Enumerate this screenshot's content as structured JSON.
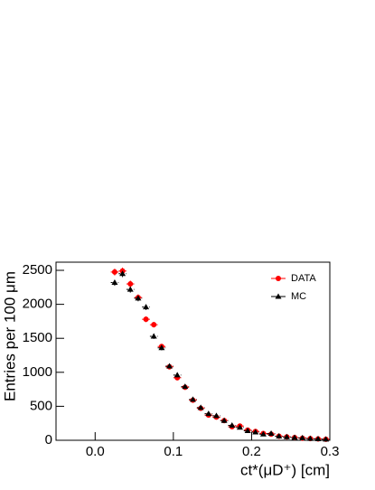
{
  "chart_data": {
    "type": "scatter",
    "x_label": "ct*(μD⁺) [cm]",
    "y_label": "Entries per 100 μm",
    "x": [
      0.025,
      0.035,
      0.045,
      0.055,
      0.065,
      0.075,
      0.085,
      0.095,
      0.105,
      0.115,
      0.125,
      0.135,
      0.145,
      0.155,
      0.165,
      0.175,
      0.185,
      0.195,
      0.205,
      0.215,
      0.225,
      0.235,
      0.245,
      0.255,
      0.265,
      0.275,
      0.285,
      0.295
    ],
    "xerr": 0.005,
    "series": [
      {
        "name": "DATA",
        "color": "#ff0000",
        "marker": "circle",
        "values": [
          2475,
          2490,
          2300,
          2100,
          1780,
          1700,
          1380,
          1080,
          920,
          780,
          590,
          470,
          370,
          340,
          290,
          200,
          210,
          150,
          130,
          100,
          90,
          60,
          50,
          40,
          30,
          25,
          20,
          15
        ],
        "yerr": [
          50,
          50,
          48,
          46,
          42,
          41,
          37,
          33,
          30,
          28,
          24,
          22,
          19,
          18,
          17,
          14,
          14,
          12,
          11,
          10,
          9,
          8,
          7,
          6,
          5,
          5,
          4,
          4
        ]
      },
      {
        "name": "MC",
        "color": "#000000",
        "marker": "triangle",
        "values": [
          2320,
          2450,
          2220,
          2090,
          1960,
          1530,
          1360,
          1090,
          960,
          790,
          600,
          480,
          390,
          360,
          290,
          220,
          190,
          140,
          120,
          90,
          100,
          60,
          50,
          40,
          35,
          25,
          20,
          15
        ],
        "yerr": [
          48,
          49,
          47,
          46,
          44,
          39,
          37,
          33,
          31,
          28,
          24,
          22,
          20,
          19,
          17,
          15,
          14,
          12,
          11,
          9,
          10,
          8,
          7,
          6,
          6,
          5,
          4,
          4
        ]
      }
    ],
    "xlim": [
      -0.05,
      0.3
    ],
    "xticks": [
      {
        "value": 0,
        "label": "0.0"
      },
      0.1,
      0.2,
      0.3
    ],
    "ylim": [
      0,
      2620
    ],
    "yticks": [
      0,
      500,
      1000,
      1500,
      2000,
      2500
    ],
    "legend": "upper right",
    "grid": false
  }
}
